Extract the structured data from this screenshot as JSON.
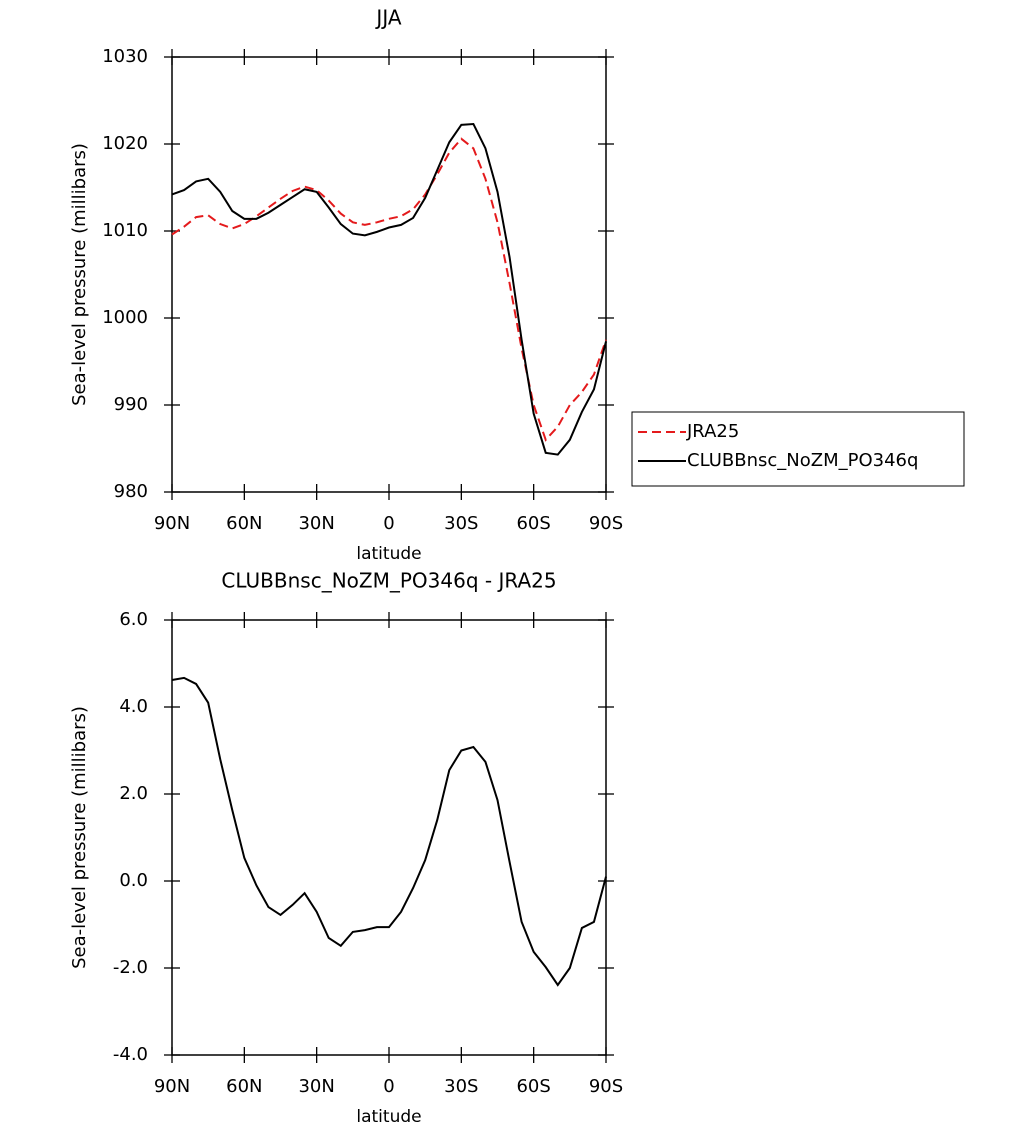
{
  "chart_data": [
    {
      "type": "line",
      "title": "JJA",
      "x_label": "latitude",
      "y_label": "Sea-level pressure (millibars)",
      "x": [
        90,
        85,
        80,
        75,
        70,
        65,
        60,
        55,
        50,
        45,
        40,
        35,
        30,
        25,
        20,
        15,
        10,
        5,
        0,
        -5,
        -10,
        -15,
        -20,
        -25,
        -30,
        -35,
        -40,
        -45,
        -50,
        -55,
        -60,
        -65,
        -70,
        -75,
        -80,
        -85,
        -90
      ],
      "series": [
        {
          "name": "JRA25",
          "color": "#e41a1c",
          "style": "dashed",
          "values": [
            1009.6,
            1010.5,
            1011.6,
            1011.8,
            1010.8,
            1010.3,
            1010.8,
            1011.7,
            1012.7,
            1013.7,
            1014.6,
            1015.1,
            1014.7,
            1013.5,
            1012.0,
            1011.0,
            1010.7,
            1011.0,
            1011.4,
            1011.7,
            1012.5,
            1014.2,
            1016.5,
            1019.0,
            1020.6,
            1019.5,
            1016.0,
            1011.0,
            1004.0,
            996.5,
            990.0,
            986.0,
            987.5,
            990.0,
            991.5,
            993.5,
            997.5
          ]
        },
        {
          "name": "CLUBBnsc_NoZM_PO346q",
          "color": "#000000",
          "style": "solid",
          "values": [
            1014.2,
            1014.7,
            1015.7,
            1016.0,
            1014.5,
            1012.3,
            1011.4,
            1011.4,
            1012.1,
            1013.0,
            1013.9,
            1014.8,
            1014.5,
            1012.7,
            1010.8,
            1009.7,
            1009.5,
            1009.9,
            1010.4,
            1010.7,
            1011.5,
            1013.8,
            1017.0,
            1020.2,
            1022.2,
            1022.3,
            1019.5,
            1014.5,
            1007.0,
            997.5,
            989.0,
            984.5,
            984.3,
            986.0,
            989.2,
            991.8,
            997.3
          ]
        }
      ],
      "xlim": [
        90,
        -90
      ],
      "xticks": [
        {
          "value": 90,
          "label": "90N"
        },
        {
          "value": 60,
          "label": "60N"
        },
        {
          "value": 30,
          "label": "30N"
        },
        0,
        {
          "value": -30,
          "label": "30S"
        },
        {
          "value": -60,
          "label": "60S"
        },
        {
          "value": -90,
          "label": "90S"
        }
      ],
      "ylim": [
        980,
        1030
      ],
      "yticks": [
        980,
        990,
        1000,
        1010,
        1020,
        1030
      ],
      "grid": false,
      "legend": "right"
    },
    {
      "type": "line",
      "title": "CLUBBnsc_NoZM_PO346q - JRA25",
      "x_label": "latitude",
      "y_label": "Sea-level pressure (millibars)",
      "x": [
        90,
        85,
        80,
        75,
        70,
        65,
        60,
        55,
        50,
        45,
        40,
        35,
        30,
        25,
        20,
        15,
        10,
        5,
        0,
        -5,
        -10,
        -15,
        -20,
        -25,
        -30,
        -35,
        -40,
        -45,
        -50,
        -55,
        -60,
        -65,
        -70,
        -75,
        -80,
        -85,
        -90
      ],
      "series": [
        {
          "color": "#000000",
          "style": "solid",
          "values": [
            4.62,
            4.67,
            4.53,
            4.1,
            2.8,
            1.63,
            0.53,
            -0.1,
            -0.6,
            -0.78,
            -0.55,
            -0.28,
            -0.71,
            -1.31,
            -1.49,
            -1.17,
            -1.13,
            -1.06,
            -1.06,
            -0.71,
            -0.16,
            0.48,
            1.4,
            2.55,
            3.0,
            3.08,
            2.74,
            1.86,
            0.44,
            -0.94,
            -1.63,
            -1.98,
            -2.39,
            -2.0,
            -1.08,
            -0.94,
            0.1
          ]
        }
      ],
      "xlim": [
        90,
        -90
      ],
      "xticks": [
        {
          "value": 90,
          "label": "90N"
        },
        {
          "value": 60,
          "label": "60N"
        },
        {
          "value": 30,
          "label": "30N"
        },
        0,
        {
          "value": -30,
          "label": "30S"
        },
        {
          "value": -60,
          "label": "60S"
        },
        {
          "value": -90,
          "label": "90S"
        }
      ],
      "ylim": [
        -4,
        6
      ],
      "yticks": [
        {
          "value": -4,
          "label": "-4.0"
        },
        {
          "value": -2,
          "label": "-2.0"
        },
        {
          "value": 0,
          "label": "0.0"
        },
        {
          "value": 2,
          "label": "2.0"
        },
        {
          "value": 4,
          "label": "4.0"
        },
        {
          "value": 6,
          "label": "6.0"
        }
      ],
      "grid": false
    }
  ]
}
